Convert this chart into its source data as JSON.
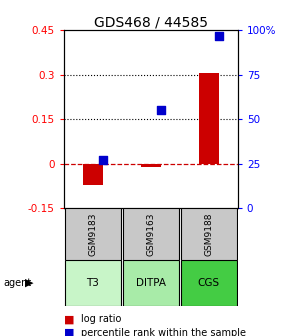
{
  "title": "GDS468 / 44585",
  "samples": [
    "GSM9183",
    "GSM9163",
    "GSM9188"
  ],
  "agents": [
    "T3",
    "DITPA",
    "CGS"
  ],
  "log_ratios": [
    -0.07,
    -0.01,
    0.305
  ],
  "percentile_ranks": [
    0.27,
    0.55,
    0.97
  ],
  "ylim_left": [
    -0.15,
    0.45
  ],
  "ylim_right": [
    0.0,
    1.0
  ],
  "yticks_left": [
    -0.15,
    0.0,
    0.15,
    0.3,
    0.45
  ],
  "ytick_labels_left": [
    "-0.15",
    "0",
    "0.15",
    "0.3",
    "0.45"
  ],
  "ytick_right_pos": [
    0.0,
    0.25,
    0.5,
    0.75,
    1.0
  ],
  "ytick_labels_right": [
    "0",
    "25",
    "50",
    "75",
    "100%"
  ],
  "bar_color": "#cc0000",
  "dot_color": "#0000cc",
  "agent_colors": [
    "#c8f5c8",
    "#a8eba8",
    "#44cc44"
  ],
  "sample_bg": "#c8c8c8",
  "title_fontsize": 10,
  "bar_width": 0.35,
  "dot_size": 30,
  "hline_zero_color": "#cc0000",
  "hline_zero_ls": "--",
  "hline_dotted_color": "black",
  "hline_dotted_ls": ":"
}
